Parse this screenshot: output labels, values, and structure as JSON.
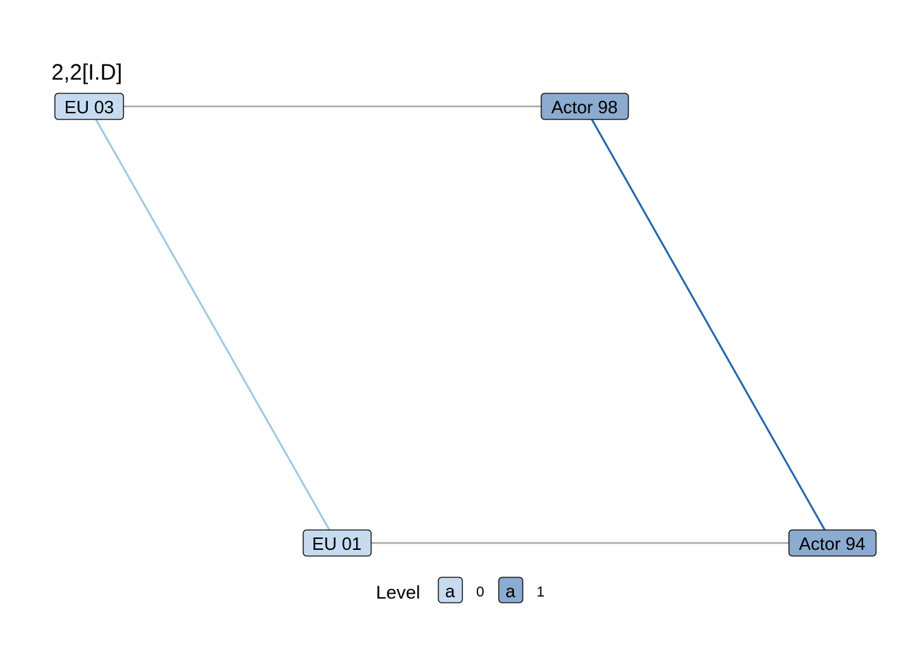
{
  "title": "2,2[I.D]",
  "colors": {
    "level_0_fill": "#c6dbef",
    "level_1_fill": "#8cabd0",
    "node_stroke": "#000000",
    "edge_grey": "#aaaaaa",
    "edge_light_blue": "#9ecae1",
    "edge_dark_blue": "#2166ac"
  },
  "nodes": [
    {
      "id": "eu03",
      "label": "EU 03",
      "level": 0
    },
    {
      "id": "actor98",
      "label": "Actor 98",
      "level": 1
    },
    {
      "id": "eu01",
      "label": "EU 01",
      "level": 0
    },
    {
      "id": "actor94",
      "label": "Actor 94",
      "level": 1
    }
  ],
  "edges": [
    {
      "from": "eu03",
      "to": "actor98",
      "color": "#aaaaaa"
    },
    {
      "from": "eu01",
      "to": "actor94",
      "color": "#aaaaaa"
    },
    {
      "from": "eu03",
      "to": "eu01",
      "color": "#9ecae1"
    },
    {
      "from": "actor98",
      "to": "actor94",
      "color": "#2166ac"
    }
  ],
  "legend": {
    "title": "Level",
    "key_glyph": "a",
    "items": [
      {
        "level": "0",
        "color": "#c6dbef"
      },
      {
        "level": "1",
        "color": "#8cabd0"
      }
    ]
  }
}
